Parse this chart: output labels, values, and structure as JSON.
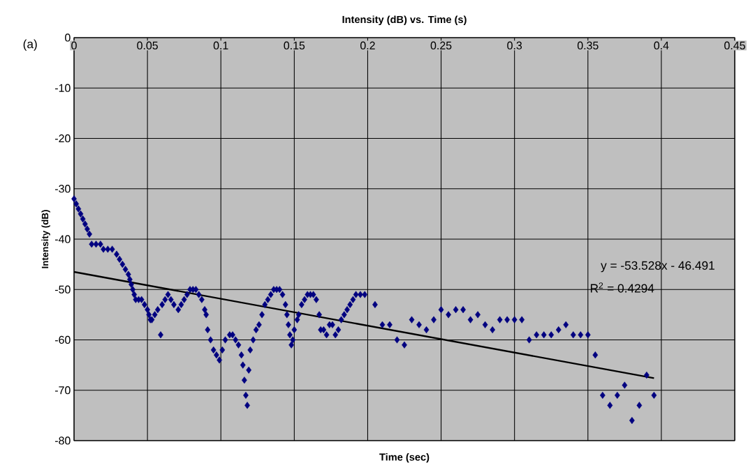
{
  "chart_data": {
    "type": "scatter",
    "title": "Intensity (dB) vs. Time (s)",
    "xlabel": "Time (sec)",
    "ylabel": "Intensity (dB)",
    "annotations": [
      "(a)",
      "y = -53.528x - 46.491",
      "R$^{2}$ = 0.4294"
    ],
    "xlim": [
      0,
      0.45
    ],
    "ylim": [
      -80,
      0
    ],
    "xticks": [
      0,
      0.05,
      0.1,
      0.15,
      0.2,
      0.25,
      0.3,
      0.35,
      0.4,
      0.45
    ],
    "yticks": [
      -80,
      -70,
      -60,
      -50,
      -40,
      -30,
      -20,
      -10,
      0
    ],
    "grid": true,
    "series": [
      {
        "marker": "diamond",
        "color": "#000080",
        "x": [
          0,
          0.0015,
          0.003,
          0.0045,
          0.006,
          0.0075,
          0.009,
          0.0105,
          0.012,
          0.015,
          0.018,
          0.02,
          0.023,
          0.026,
          0.029,
          0.031,
          0.033,
          0.035,
          0.037,
          0.038,
          0.039,
          0.04,
          0.041,
          0.042,
          0.044,
          0.046,
          0.048,
          0.05,
          0.051,
          0.052,
          0.053,
          0.055,
          0.057,
          0.059,
          0.06,
          0.062,
          0.064,
          0.066,
          0.068,
          0.071,
          0.073,
          0.075,
          0.077,
          0.079,
          0.081,
          0.083,
          0.085,
          0.087,
          0.089,
          0.09,
          0.091,
          0.093,
          0.095,
          0.097,
          0.099,
          0.101,
          0.103,
          0.106,
          0.108,
          0.11,
          0.112,
          0.114,
          0.115,
          0.116,
          0.117,
          0.118,
          0.119,
          0.12,
          0.122,
          0.124,
          0.126,
          0.128,
          0.13,
          0.132,
          0.134,
          0.136,
          0.138,
          0.14,
          0.142,
          0.144,
          0.145,
          0.146,
          0.147,
          0.148,
          0.149,
          0.15,
          0.152,
          0.153,
          0.155,
          0.157,
          0.159,
          0.161,
          0.163,
          0.165,
          0.167,
          0.168,
          0.17,
          0.172,
          0.174,
          0.176,
          0.178,
          0.18,
          0.182,
          0.184,
          0.186,
          0.188,
          0.19,
          0.192,
          0.195,
          0.198,
          0.205,
          0.21,
          0.215,
          0.22,
          0.225,
          0.23,
          0.235,
          0.24,
          0.245,
          0.25,
          0.255,
          0.26,
          0.265,
          0.27,
          0.275,
          0.28,
          0.285,
          0.29,
          0.295,
          0.3,
          0.305,
          0.31,
          0.315,
          0.32,
          0.325,
          0.33,
          0.335,
          0.34,
          0.345,
          0.35,
          0.355,
          0.36,
          0.365,
          0.37,
          0.375,
          0.38,
          0.385,
          0.39,
          0.395
        ],
        "values": [
          -32,
          -33,
          -34,
          -35,
          -36,
          -37,
          -38,
          -39,
          -41,
          -41,
          -41,
          -42,
          -42,
          -42,
          -43,
          -44,
          -45,
          -46,
          -47,
          -48,
          -49,
          -50,
          -51,
          -52,
          -52,
          -52,
          -53,
          -54,
          -55,
          -56,
          -56,
          -55,
          -54,
          -59,
          -53,
          -52,
          -51,
          -52,
          -53,
          -54,
          -53,
          -52,
          -51,
          -50,
          -50,
          -50,
          -51,
          -52,
          -54,
          -55,
          -58,
          -60,
          -62,
          -63,
          -64,
          -62,
          -60,
          -59,
          -59,
          -60,
          -61,
          -63,
          -65,
          -68,
          -71,
          -73,
          -66,
          -62,
          -60,
          -58,
          -57,
          -55,
          -53,
          -52,
          -51,
          -50,
          -50,
          -50,
          -51,
          -53,
          -55,
          -57,
          -59,
          -61,
          -60,
          -58,
          -56,
          -55,
          -53,
          -52,
          -51,
          -51,
          -51,
          -52,
          -55,
          -58,
          -58,
          -59,
          -57,
          -57,
          -59,
          -58,
          -56,
          -55,
          -54,
          -53,
          -52,
          -51,
          -51,
          -51,
          -53,
          -57,
          -57,
          -60,
          -61,
          -56,
          -57,
          -58,
          -56,
          -54,
          -55,
          -54,
          -54,
          -56,
          -55,
          -57,
          -58,
          -56,
          -56,
          -56,
          -56,
          -60,
          -59,
          -59,
          -59,
          -58,
          -57,
          -59,
          -59,
          -59,
          -63,
          -71,
          -73,
          -71,
          -69,
          -76,
          -73,
          -67,
          -71
        ]
      },
      {
        "type": "line",
        "color": "#000000",
        "x": [
          0,
          0.395
        ],
        "values": [
          -46.5,
          -67.6
        ]
      }
    ]
  }
}
